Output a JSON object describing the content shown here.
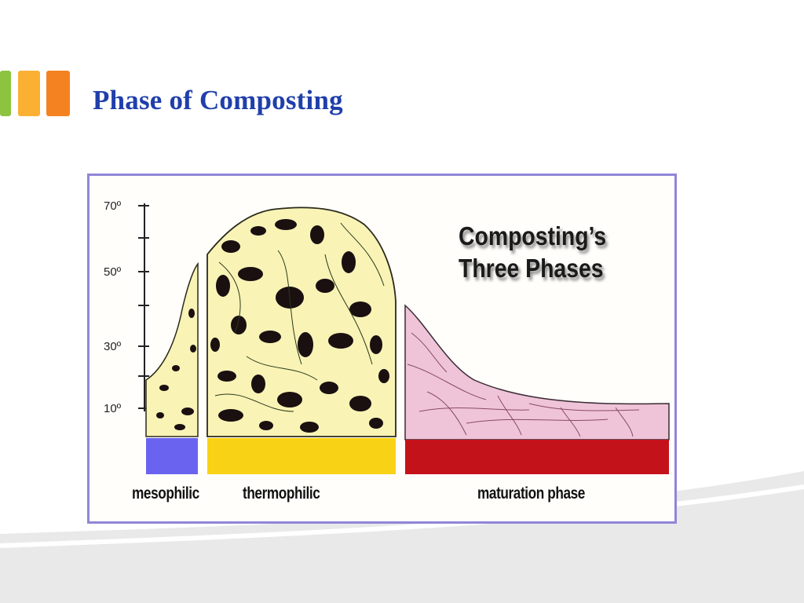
{
  "slide": {
    "title": "Phase of Composting",
    "title_color": "#1f3faa",
    "accent_colors": [
      "#8cc43f",
      "#fbb034",
      "#f58220"
    ],
    "background_band_color": "#e9e9e9"
  },
  "diagram": {
    "heading_line1": "Composting’s",
    "heading_line2": "Three Phases",
    "frame_color": "#8f86d8",
    "y_axis_ticks": [
      "70º",
      "50º",
      "30º",
      "10º"
    ],
    "phases": [
      {
        "label": "mesophilic",
        "bar_color": "#6a63f0",
        "fill_color": "#f9f3b6"
      },
      {
        "label": "thermophilic",
        "bar_color": "#f8d214",
        "fill_color": "#f9f3b6"
      },
      {
        "label": "maturation phase",
        "bar_color": "#c4121a",
        "fill_color": "#efc4d8"
      }
    ]
  }
}
